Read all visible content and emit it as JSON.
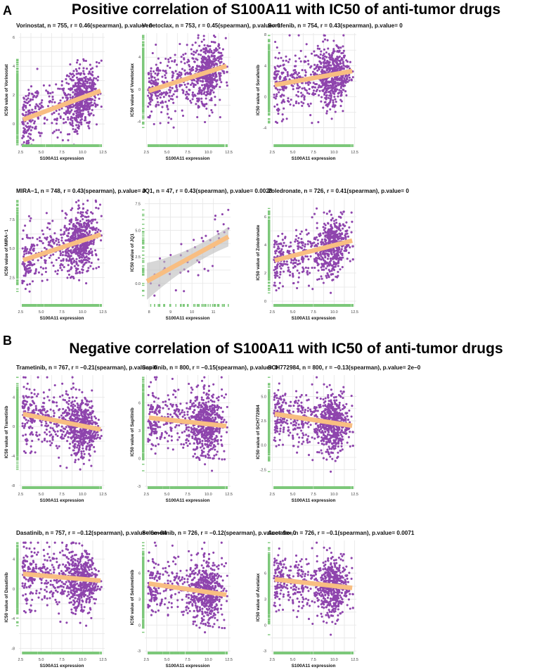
{
  "panel_a": {
    "label": "A",
    "heading": "Positive correlation of S100A11 with IC50 of anti-tumor drugs"
  },
  "panel_b": {
    "label": "B",
    "heading": "Negative correlation of S100A11 with IC50 of anti-tumor drugs"
  },
  "colors": {
    "points": "#8E44AD",
    "trend": "#F8BE82",
    "rug": "#7DC87A",
    "grid": "#E6E6E6",
    "ci_band": "#BDBDBD"
  },
  "chart_data": [
    {
      "type": "scatter",
      "title": "Vorinostat, n = 755, r = 0.46(spearman), p.value= 0",
      "n": 755,
      "xlabel": "S100A11 expression",
      "ylabel": "IC50 value of Vorinostat",
      "xlim": [
        2.3,
        12.7
      ],
      "xticks": [
        "2.5",
        "5.0",
        "7.5",
        "10.0",
        "12.5"
      ],
      "ylim": [
        -1.6,
        6.3
      ],
      "yticks": [
        "0",
        "2",
        "4",
        "6"
      ],
      "trend": {
        "x": [
          2.8,
          12.2
        ],
        "y": [
          0.3,
          2.3
        ]
      },
      "grid": true
    },
    {
      "type": "scatter",
      "title": "Venetoclax, n = 753, r = 0.45(spearman), p.value= 0",
      "n": 753,
      "xlabel": "S100A11 expression",
      "ylabel": "IC50 value of Venetoclax",
      "xlim": [
        2.3,
        12.7
      ],
      "xticks": [
        "2.5",
        "5.0",
        "7.5",
        "10.0",
        "12.5"
      ],
      "ylim": [
        -7.2,
        7
      ],
      "yticks": [
        "-4",
        "0",
        "4"
      ],
      "trend": {
        "x": [
          2.8,
          12.2
        ],
        "y": [
          -0.2,
          2.9
        ]
      },
      "grid": true
    },
    {
      "type": "scatter",
      "title": "Sorafenib, n = 754, r = 0.43(spearman), p.value= 0",
      "n": 754,
      "xlabel": "S100A11 expression",
      "ylabel": "IC50 value of Sorafenib",
      "xlim": [
        2.3,
        12.7
      ],
      "xticks": [
        "2.5",
        "5.0",
        "7.5",
        "10.0",
        "12.5"
      ],
      "ylim": [
        -6.5,
        8.2
      ],
      "yticks": [
        "-4",
        "0",
        "4",
        "8"
      ],
      "trend": {
        "x": [
          2.8,
          12.2
        ],
        "y": [
          1.5,
          3.3
        ]
      },
      "grid": true
    },
    {
      "type": "scatter",
      "title": "MIRA−1, n = 748, r = 0.43(spearman), p.value= 0",
      "n": 748,
      "xlabel": "S100A11 expression",
      "ylabel": "IC50 value of MIRA−1",
      "xlim": [
        2.3,
        12.7
      ],
      "xticks": [
        "2.5",
        "5.0",
        "7.5",
        "10.0",
        "12.5"
      ],
      "ylim": [
        0,
        9.3
      ],
      "yticks": [
        "2.5",
        "5.0",
        "7.5"
      ],
      "trend": {
        "x": [
          2.8,
          12.2
        ],
        "y": [
          4.0,
          6.2
        ]
      },
      "grid": true
    },
    {
      "type": "scatter",
      "title": "JQ1, n = 47, r = 0.43(spearman), p.value= 0.0028",
      "n": 47,
      "xlabel": "S100A11 expression",
      "ylabel": "IC50 value of JQ1",
      "xlim": [
        7.8,
        11.8
      ],
      "xticks": [
        "8",
        "9",
        "10",
        "11"
      ],
      "ylim": [
        -2.2,
        8
      ],
      "yticks": [
        "0.0",
        "2.5",
        "5.0",
        "7.5"
      ],
      "trend": {
        "x": [
          7.9,
          11.7
        ],
        "y": [
          0.2,
          4.4
        ]
      },
      "ci": true,
      "grid": true
    },
    {
      "type": "scatter",
      "title": "Zoledronate, n = 726, r = 0.41(spearman), p.value= 0",
      "n": 726,
      "xlabel": "S100A11 expression",
      "ylabel": "IC50 value of Zoledronate",
      "xlim": [
        2.3,
        12.7
      ],
      "xticks": [
        "2.5",
        "5.0",
        "7.5",
        "10.0",
        "12.5"
      ],
      "ylim": [
        -0.4,
        7.3
      ],
      "yticks": [
        "0",
        "2",
        "4",
        "6"
      ],
      "trend": {
        "x": [
          2.8,
          12.2
        ],
        "y": [
          2.9,
          4.3
        ]
      },
      "grid": true
    },
    {
      "type": "scatter",
      "title": "Trametinib, n = 767, r = −0.21(spearman), p.value= 0",
      "n": 767,
      "xlabel": "S100A11 expression",
      "ylabel": "IC50 value of Trametinib",
      "xlim": [
        2.3,
        12.7
      ],
      "xticks": [
        "2.5",
        "5.0",
        "7.5",
        "10.0",
        "12.5"
      ],
      "ylim": [
        -8.5,
        7
      ],
      "yticks": [
        "-8",
        "-4",
        "0",
        "4"
      ],
      "trend": {
        "x": [
          2.8,
          12.2
        ],
        "y": [
          1.7,
          -0.4
        ]
      },
      "grid": true
    },
    {
      "type": "scatter",
      "title": "Sapitinib, n = 800, r = −0.15(spearman), p.value= 0",
      "n": 800,
      "xlabel": "S100A11 expression",
      "ylabel": "IC50 value of Sapitinib",
      "xlim": [
        2.3,
        12.7
      ],
      "xticks": [
        "2.5",
        "5.0",
        "7.5",
        "10.0",
        "12.5"
      ],
      "ylim": [
        -3.3,
        9
      ],
      "yticks": [
        "-3",
        "0",
        "3",
        "6"
      ],
      "trend": {
        "x": [
          2.8,
          12.2
        ],
        "y": [
          4.4,
          3.5
        ]
      },
      "grid": true
    },
    {
      "type": "scatter",
      "title": "SCH772984, n = 800, r = −0.13(spearman), p.value= 2e−0",
      "n": 800,
      "xlabel": "S100A11 expression",
      "ylabel": "IC50 value of SCH772984",
      "xlim": [
        2.3,
        12.7
      ],
      "xticks": [
        "2.5",
        "5.0",
        "7.5",
        "10.0",
        "12.5"
      ],
      "ylim": [
        -4.5,
        7.2
      ],
      "yticks": [
        "-2.5",
        "0.0",
        "2.5",
        "5.0"
      ],
      "trend": {
        "x": [
          2.8,
          12.2
        ],
        "y": [
          3.2,
          2.0
        ]
      },
      "grid": true
    },
    {
      "type": "scatter",
      "title": "Dasatinib, n = 757, r = −0.12(spearman), p.value= 6e−04",
      "n": 757,
      "xlabel": "S100A11 expression",
      "ylabel": "IC50 value of Dasatinib",
      "xlim": [
        2.3,
        12.7
      ],
      "xticks": [
        "2.5",
        "5.0",
        "7.5",
        "10.0",
        "12.5"
      ],
      "ylim": [
        -8.8,
        6.5
      ],
      "yticks": [
        "-8",
        "-4",
        "0",
        "4"
      ],
      "trend": {
        "x": [
          2.8,
          12.2
        ],
        "y": [
          2.0,
          1.1
        ]
      },
      "grid": true
    },
    {
      "type": "scatter",
      "title": "Selumetinib, n = 726, r = −0.12(spearman), p.value= 9e−0",
      "n": 726,
      "xlabel": "S100A11 expression",
      "ylabel": "IC50 value of Selumetinib",
      "xlim": [
        2.3,
        12.7
      ],
      "xticks": [
        "2.5",
        "5.0",
        "7.5",
        "10.0",
        "12.5"
      ],
      "ylim": [
        -3.4,
        9.8
      ],
      "yticks": [
        "-3",
        "0",
        "3",
        "6"
      ],
      "trend": {
        "x": [
          2.8,
          12.2
        ],
        "y": [
          4.8,
          3.5
        ]
      },
      "grid": true
    },
    {
      "type": "scatter",
      "title": "Acetalax, n = 726, r = −0.1(spearman), p.value= 0.0071",
      "n": 726,
      "xlabel": "S100A11 expression",
      "ylabel": "IC50 value of Acetalax",
      "xlim": [
        2.3,
        12.7
      ],
      "xticks": [
        "2.5",
        "5.0",
        "7.5",
        "10.0",
        "12.5"
      ],
      "ylim": [
        -3.4,
        9.8
      ],
      "yticks": [
        "-3",
        "0",
        "3",
        "6"
      ],
      "trend": {
        "x": [
          2.8,
          12.2
        ],
        "y": [
          5.3,
          4.3
        ]
      },
      "grid": true
    }
  ]
}
